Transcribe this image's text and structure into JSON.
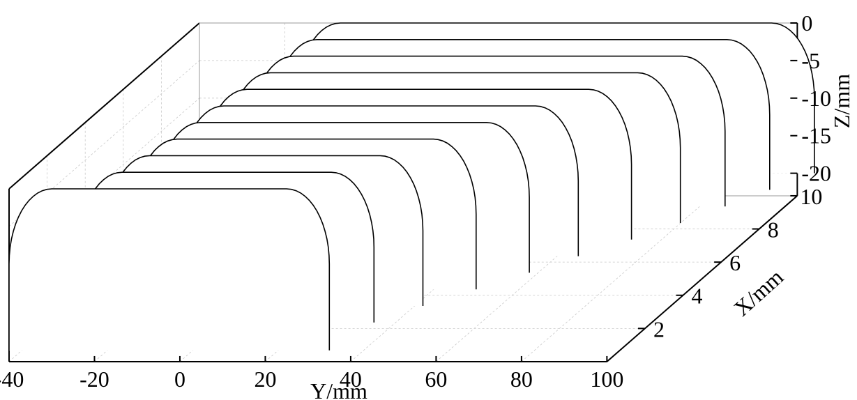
{
  "chart_data": {
    "type": "line",
    "subtype": "3d-waterfall-surface-profiles",
    "xlabel": "Y/mm",
    "ylabel": "X/mm",
    "zlabel": "Z/mm",
    "y_ticks": [
      "-40",
      "-20",
      "0",
      "20",
      "40",
      "60",
      "80",
      "100"
    ],
    "x_ticks": [
      "2",
      "4",
      "6",
      "8",
      "10"
    ],
    "z_ticks": [
      "0",
      "-5",
      "-10",
      "-15",
      "-20"
    ],
    "y_range": [
      -40,
      100
    ],
    "x_range": [
      0,
      10
    ],
    "z_range": [
      -23,
      0
    ],
    "grid": true,
    "series": [
      {
        "x": 0,
        "y_start": -40,
        "y_end": 35,
        "depth": 21.5,
        "corner_radius": 10
      },
      {
        "x": 1,
        "y_start": -28,
        "y_end": 41,
        "depth": 20,
        "corner_radius": 10
      },
      {
        "x": 2,
        "y_start": -26,
        "y_end": 48,
        "depth": 20,
        "corner_radius": 10
      },
      {
        "x": 3,
        "y_start": -24,
        "y_end": 56,
        "depth": 20,
        "corner_radius": 10
      },
      {
        "x": 4,
        "y_start": -23,
        "y_end": 64,
        "depth": 20,
        "corner_radius": 10
      },
      {
        "x": 5,
        "y_start": -22,
        "y_end": 71,
        "depth": 20,
        "corner_radius": 10
      },
      {
        "x": 6,
        "y_start": -21,
        "y_end": 79,
        "depth": 20,
        "corner_radius": 10
      },
      {
        "x": 7,
        "y_start": -20,
        "y_end": 86,
        "depth": 20,
        "corner_radius": 10
      },
      {
        "x": 8,
        "y_start": -19,
        "y_end": 92,
        "depth": 20,
        "corner_radius": 10
      },
      {
        "x": 9,
        "y_start": -18,
        "y_end": 98,
        "depth": 20,
        "corner_radius": 10
      },
      {
        "x": 10,
        "y_start": -17,
        "y_end": 104,
        "depth": 20,
        "corner_radius": 10
      }
    ]
  }
}
